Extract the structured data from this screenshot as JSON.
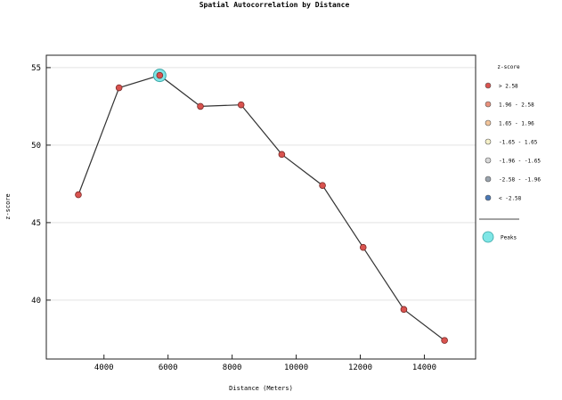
{
  "chart_data": {
    "type": "line",
    "title": "Spatial Autocorrelation by Distance",
    "xlabel": "Distance (Meters)",
    "ylabel": "z-score",
    "xlim": [
      2200,
      15600
    ],
    "ylim": [
      36.2,
      55.8
    ],
    "xticks": [
      4000,
      6000,
      8000,
      10000,
      12000,
      14000
    ],
    "yticks": [
      40,
      45,
      50,
      55
    ],
    "grid": "horizontal",
    "legend_position": "right",
    "series": [
      {
        "x": [
          3200,
          4470,
          5740,
          7010,
          8280,
          9550,
          10820,
          12090,
          13360,
          14630
        ],
        "y": [
          46.8,
          53.7,
          54.5,
          52.5,
          52.6,
          49.4,
          47.4,
          43.4,
          39.4,
          37.4
        ]
      }
    ],
    "peaks": [
      {
        "x": 5740,
        "y": 54.5
      }
    ],
    "legend": {
      "title": "z-score",
      "items": [
        {
          "label": "> 2.58",
          "color": "#d9534f"
        },
        {
          "label": "1.96 - 2.58",
          "color": "#e8907c"
        },
        {
          "label": "1.65 - 1.96",
          "color": "#f2c49a"
        },
        {
          "label": "-1.65 - 1.65",
          "color": "#f5f0c8"
        },
        {
          "label": "-1.96 - -1.65",
          "color": "#d8d8d8"
        },
        {
          "label": "-2.58 - -1.96",
          "color": "#9aa3ad"
        },
        {
          "label": "< -2.58",
          "color": "#4a78b5"
        }
      ],
      "peaks_label": "Peaks",
      "peaks_color": "#7fe6e6",
      "point_color": "#d9534f",
      "line_color": "#333333"
    }
  }
}
